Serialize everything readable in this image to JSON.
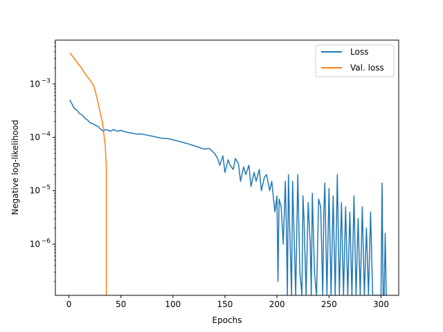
{
  "chart_data": {
    "type": "line",
    "title": "",
    "xlabel": "Epochs",
    "ylabel": "Negative log-likelihood",
    "xlim": [
      -13,
      317
    ],
    "ylim": [
      1.1e-07,
      0.0066
    ],
    "yscale": "log",
    "grid": false,
    "legend_position": "top-right",
    "x_ticks": [
      0,
      50,
      100,
      150,
      200,
      250,
      300
    ],
    "x_tick_labels": [
      "0",
      "50",
      "100",
      "150",
      "200",
      "250",
      "300"
    ],
    "y_ticks": [
      1e-06,
      1e-05,
      0.0001,
      0.001
    ],
    "y_tick_labels": [
      {
        "base": "10",
        "exp": "−6"
      },
      {
        "base": "10",
        "exp": "−5"
      },
      {
        "base": "10",
        "exp": "−4"
      },
      {
        "base": "10",
        "exp": "−3"
      }
    ],
    "series": [
      {
        "name": "Loss",
        "color": "#1f77b4",
        "x": [
          1,
          3,
          5,
          8,
          10,
          13,
          15,
          18,
          20,
          23,
          25,
          28,
          30,
          33,
          35,
          38,
          40,
          43,
          46,
          50,
          55,
          60,
          65,
          70,
          75,
          80,
          85,
          90,
          95,
          100,
          105,
          110,
          115,
          120,
          125,
          130,
          135,
          140,
          143,
          145,
          148,
          150,
          153,
          155,
          158,
          160,
          163,
          165,
          168,
          170,
          173,
          175,
          178,
          180,
          183,
          185,
          188,
          190,
          193,
          195,
          198,
          200,
          201,
          202,
          204,
          206,
          208,
          209,
          210,
          211,
          212,
          214,
          215,
          216,
          218,
          220,
          222,
          224,
          225,
          226,
          228,
          230,
          232,
          233,
          234,
          236,
          238,
          240,
          242,
          244,
          245,
          246,
          248,
          250,
          252,
          254,
          256,
          258,
          260,
          262,
          264,
          266,
          268,
          270,
          272,
          274,
          276,
          278,
          280,
          282,
          284,
          286,
          288,
          290,
          292,
          294,
          296,
          298,
          300,
          301,
          302,
          303,
          304,
          305
        ],
        "y": [
          0.0005,
          0.00042,
          0.00035,
          0.00032,
          0.00028,
          0.00026,
          0.00023,
          0.00021,
          0.00019,
          0.00018,
          0.00017,
          0.00016,
          0.000145,
          0.00013,
          0.00014,
          0.000135,
          0.00013,
          0.00014,
          0.00013,
          0.000135,
          0.000125,
          0.00012,
          0.000115,
          0.000115,
          0.00011,
          0.000105,
          0.0001,
          9.5e-05,
          9.5e-05,
          9e-05,
          8.5e-05,
          8e-05,
          7.5e-05,
          7e-05,
          6.5e-05,
          6e-05,
          6.2e-05,
          5e-05,
          4e-05,
          3e-05,
          4.5e-05,
          2.2e-05,
          3.8e-05,
          3e-05,
          2.5e-05,
          4e-05,
          3.2e-05,
          1.5e-05,
          2.8e-05,
          2e-05,
          3e-05,
          1.2e-05,
          2.2e-05,
          1.5e-05,
          2.5e-05,
          1e-05,
          1.8e-05,
          2e-05,
          1e-05,
          1.5e-05,
          4e-06,
          8e-06,
          2e-07,
          7e-06,
          5e-06,
          1e-06,
          1.5e-05,
          2e-06,
          1.1e-07,
          2e-05,
          3e-06,
          1.1e-07,
          1.5e-05,
          3e-06,
          1.1e-07,
          2e-05,
          3e-07,
          1.1e-07,
          8e-06,
          3e-06,
          1.1e-07,
          6e-06,
          1e-06,
          1.1e-07,
          9e-06,
          3e-07,
          1.1e-07,
          7e-06,
          5e-06,
          1.1e-07,
          4e-06,
          1.4e-05,
          1.1e-07,
          1.1e-05,
          1.1e-07,
          8e-06,
          1.1e-07,
          2e-05,
          1.1e-07,
          6e-06,
          1.1e-07,
          5e-06,
          1.1e-07,
          4e-06,
          1.1e-07,
          8e-06,
          1.1e-07,
          3e-06,
          1.1e-07,
          5e-06,
          1.1e-07,
          2e-06,
          1.1e-07,
          4e-06,
          1.1e-07,
          1.1e-07,
          1.1e-07,
          1.1e-07,
          1.1e-07,
          1.4e-05,
          1.1e-07,
          1.1e-07,
          1.6e-06,
          1.1e-07
        ]
      },
      {
        "name": "Val. loss",
        "color": "#ff7f0e",
        "x": [
          1,
          4,
          8,
          12,
          16,
          20,
          24,
          26,
          28,
          30,
          32,
          33,
          34,
          35,
          35.5,
          36,
          36,
          36
        ],
        "y": [
          0.0038,
          0.0032,
          0.0025,
          0.002,
          0.0015,
          0.0012,
          0.0009,
          0.00065,
          0.00045,
          0.0003,
          0.0002,
          0.00015,
          0.0001,
          7e-05,
          4e-05,
          3e-05,
          5e-07,
          1.1e-07
        ]
      }
    ]
  }
}
